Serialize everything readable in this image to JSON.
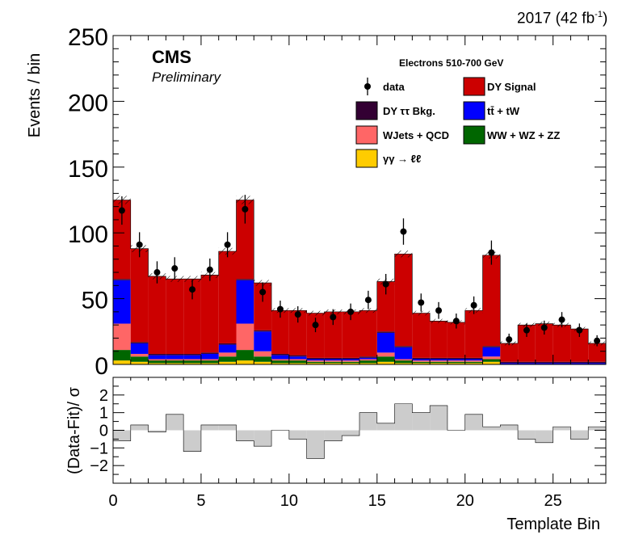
{
  "header": {
    "period": "2017",
    "lumi_prefix": "(42 fb",
    "lumi_sup": "-1",
    "lumi_suffix": ")"
  },
  "labels": {
    "experiment": "CMS",
    "status": "Preliminary",
    "region": "Electrons 510-700 GeV"
  },
  "chart_data": [
    {
      "type": "bar",
      "subtype": "stacked-histogram",
      "ylabel": "Events / bin",
      "xlabel": "",
      "xlim": [
        0,
        28
      ],
      "ylim": [
        0,
        250
      ],
      "yticks": [
        "0",
        "50",
        "100",
        "150",
        "200",
        "250"
      ],
      "bins": [
        0,
        1,
        2,
        3,
        4,
        5,
        6,
        7,
        8,
        9,
        10,
        11,
        12,
        13,
        14,
        15,
        16,
        17,
        18,
        19,
        20,
        21,
        22,
        23,
        24,
        25,
        26,
        27
      ],
      "series": [
        {
          "name": "γγ → ℓℓ",
          "color": "#ffcc00",
          "values": [
            3,
            2,
            1,
            1,
            1,
            1,
            2,
            3,
            2,
            1,
            1,
            1,
            1,
            1,
            1,
            2,
            1,
            1,
            1,
            1,
            1,
            2,
            0,
            0,
            0,
            0,
            0,
            0
          ]
        },
        {
          "name": "WW + WZ + ZZ",
          "color": "#006600",
          "values": [
            8,
            4,
            2,
            2,
            2,
            2,
            4,
            8,
            4,
            2,
            2,
            1,
            1,
            1,
            2,
            4,
            2,
            1,
            1,
            1,
            1,
            2,
            0,
            0,
            0,
            0,
            0,
            0
          ]
        },
        {
          "name": "WJets + QCD",
          "color": "#ff6666",
          "values": [
            20,
            2,
            1,
            1,
            1,
            1,
            3,
            20,
            4,
            1,
            1,
            1,
            1,
            1,
            1,
            3,
            1,
            1,
            1,
            1,
            1,
            2,
            0,
            0,
            0,
            0,
            0,
            0
          ]
        },
        {
          "name": "tt̄ + tW",
          "color": "#0000ff",
          "values": [
            33,
            8,
            3,
            3,
            3,
            4,
            6,
            33,
            15,
            3,
            2,
            1,
            1,
            1,
            1,
            15,
            9,
            1,
            1,
            1,
            1,
            7,
            1,
            1,
            1,
            1,
            1,
            1
          ]
        },
        {
          "name": "DY ττ Bkg.",
          "color": "#330033",
          "values": [
            1,
            1,
            1,
            1,
            1,
            1,
            1,
            1,
            1,
            1,
            1,
            1,
            1,
            1,
            1,
            1,
            1,
            1,
            1,
            1,
            1,
            1,
            1,
            1,
            1,
            1,
            1,
            1
          ]
        },
        {
          "name": "DY Signal",
          "color": "#cc0000",
          "values": [
            60,
            71,
            59,
            57,
            57,
            59,
            70,
            60,
            36,
            33,
            34,
            34,
            35,
            35,
            35,
            38,
            70,
            34,
            28,
            27,
            36,
            69,
            14,
            28,
            29,
            28,
            25,
            14
          ]
        }
      ],
      "data": {
        "name": "data",
        "values": [
          117,
          91,
          70,
          73,
          57,
          72,
          91,
          118,
          55,
          42,
          38,
          30,
          36,
          40,
          49,
          61,
          101,
          47,
          41,
          33,
          45,
          85,
          19,
          26,
          28,
          34,
          26,
          18
        ],
        "errors": [
          10.8,
          9.5,
          8.4,
          8.5,
          7.5,
          8.5,
          9.5,
          10.9,
          7.4,
          6.5,
          6.2,
          5.5,
          6.0,
          6.3,
          7.0,
          7.8,
          10.0,
          6.9,
          6.4,
          5.7,
          6.7,
          9.2,
          4.4,
          5.1,
          5.3,
          5.8,
          5.1,
          4.2
        ]
      },
      "legend": {
        "placement": "top-right",
        "entries": [
          {
            "label": "data",
            "kind": "marker"
          },
          {
            "label": "DY Signal",
            "kind": "box",
            "color": "#cc0000"
          },
          {
            "label": "DY  ττ Bkg.",
            "kind": "box",
            "color": "#330033"
          },
          {
            "label": "tt̄ + tW",
            "kind": "box",
            "color": "#0000ff"
          },
          {
            "label": "WJets + QCD",
            "kind": "box",
            "color": "#ff6666"
          },
          {
            "label": "WW + WZ + ZZ",
            "kind": "box",
            "color": "#006600"
          },
          {
            "label": "γγ → ℓℓ",
            "kind": "box",
            "color": "#ffcc00"
          }
        ]
      },
      "uncertainty_band": "hatched"
    },
    {
      "type": "bar",
      "subtype": "pull-histogram",
      "ylabel": "(Data-Fit)/ σ",
      "xlabel": "Template Bin",
      "xlim": [
        0,
        28
      ],
      "ylim": [
        -3,
        3
      ],
      "yticks": [
        "−2",
        "−1",
        "0",
        "1",
        "2"
      ],
      "xticks": [
        "0",
        "5",
        "10",
        "15",
        "20",
        "25"
      ],
      "fill": "#cccccc",
      "values": [
        -0.6,
        0.3,
        -0.1,
        0.9,
        -1.2,
        0.3,
        0.3,
        -0.6,
        -0.9,
        0.0,
        -0.5,
        -1.6,
        -0.6,
        -0.3,
        1.0,
        0.4,
        1.5,
        1.0,
        1.4,
        0.0,
        0.9,
        0.2,
        0.3,
        -0.5,
        -0.7,
        0.2,
        -0.5,
        0.2
      ]
    }
  ]
}
